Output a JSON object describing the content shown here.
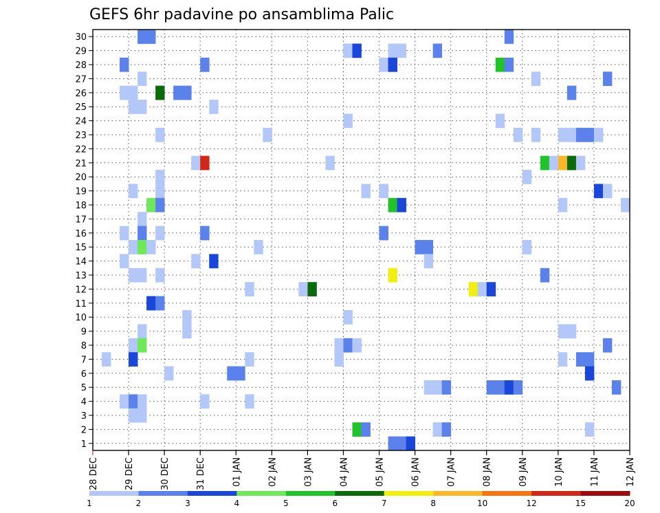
{
  "chart_data": {
    "type": "heatmap",
    "title": "GEFS 6hr padavine po ansamblima Palic",
    "x_tick_labels": [
      "28 DEC",
      "29 DEC",
      "30 DEC",
      "31 DEC",
      "01 JAN",
      "02 JAN",
      "03 JAN",
      "04 JAN",
      "05 JAN",
      "06 JAN",
      "07 JAN",
      "08 JAN",
      "09 JAN",
      "10 JAN",
      "11 JAN",
      "12 JAN"
    ],
    "y_tick_labels": [
      "1",
      "2",
      "3",
      "4",
      "5",
      "6",
      "7",
      "8",
      "9",
      "10",
      "11",
      "12",
      "13",
      "14",
      "15",
      "16",
      "17",
      "18",
      "19",
      "20",
      "21",
      "22",
      "23",
      "24",
      "25",
      "26",
      "27",
      "28",
      "29",
      "30"
    ],
    "xlim_days": [
      0,
      15
    ],
    "ylim_members": [
      0.5,
      30.5
    ],
    "grid": true,
    "cells_note": "each cell = [day offset from 28 DEC 00UTC (6h steps of 0.25), ensemble member, precipitation category level 0-10]",
    "cells": [
      [
        1.25,
        30,
        1
      ],
      [
        1.5,
        30,
        1
      ],
      [
        11.5,
        30,
        1
      ],
      [
        7.0,
        29,
        0
      ],
      [
        7.25,
        29,
        2
      ],
      [
        8.25,
        29,
        0
      ],
      [
        8.5,
        29,
        0
      ],
      [
        9.5,
        29,
        1
      ],
      [
        0.75,
        28,
        1
      ],
      [
        3.0,
        28,
        1
      ],
      [
        8.0,
        28,
        0
      ],
      [
        8.25,
        28,
        2
      ],
      [
        11.25,
        28,
        4
      ],
      [
        11.5,
        28,
        1
      ],
      [
        1.25,
        27,
        0
      ],
      [
        12.25,
        27,
        0
      ],
      [
        14.25,
        27,
        1
      ],
      [
        0.75,
        26,
        0
      ],
      [
        1.0,
        26,
        0
      ],
      [
        1.75,
        26,
        5
      ],
      [
        2.25,
        26,
        1
      ],
      [
        2.5,
        26,
        1
      ],
      [
        13.25,
        26,
        1
      ],
      [
        1.0,
        25,
        0
      ],
      [
        1.25,
        25,
        0
      ],
      [
        3.25,
        25,
        0
      ],
      [
        7.0,
        24,
        0
      ],
      [
        11.25,
        24,
        0
      ],
      [
        1.75,
        23,
        0
      ],
      [
        4.75,
        23,
        0
      ],
      [
        11.75,
        23,
        0
      ],
      [
        12.25,
        23,
        0
      ],
      [
        13.0,
        23,
        0
      ],
      [
        13.25,
        23,
        0
      ],
      [
        13.5,
        23,
        1
      ],
      [
        13.75,
        23,
        1
      ],
      [
        14.0,
        23,
        0
      ],
      [
        2.75,
        21,
        0
      ],
      [
        3.0,
        21,
        9
      ],
      [
        6.5,
        21,
        0
      ],
      [
        12.5,
        21,
        4
      ],
      [
        12.75,
        21,
        0
      ],
      [
        13.0,
        21,
        7
      ],
      [
        13.25,
        21,
        5
      ],
      [
        13.5,
        21,
        0
      ],
      [
        1.75,
        20,
        0
      ],
      [
        12.0,
        20,
        0
      ],
      [
        1.0,
        19,
        0
      ],
      [
        1.75,
        19,
        0
      ],
      [
        7.5,
        19,
        0
      ],
      [
        8.0,
        19,
        0
      ],
      [
        14.0,
        19,
        2
      ],
      [
        14.25,
        19,
        0
      ],
      [
        1.5,
        18,
        3
      ],
      [
        1.75,
        18,
        1
      ],
      [
        8.25,
        18,
        4
      ],
      [
        8.5,
        18,
        2
      ],
      [
        13.0,
        18,
        0
      ],
      [
        14.75,
        18,
        0
      ],
      [
        1.25,
        17,
        0
      ],
      [
        0.75,
        16,
        0
      ],
      [
        1.25,
        16,
        1
      ],
      [
        1.75,
        16,
        0
      ],
      [
        3.0,
        16,
        1
      ],
      [
        8.0,
        16,
        1
      ],
      [
        1.0,
        15,
        0
      ],
      [
        1.25,
        15,
        3
      ],
      [
        1.5,
        15,
        0
      ],
      [
        4.5,
        15,
        0
      ],
      [
        9.0,
        15,
        1
      ],
      [
        9.25,
        15,
        1
      ],
      [
        12.0,
        15,
        0
      ],
      [
        0.75,
        14,
        0
      ],
      [
        2.75,
        14,
        0
      ],
      [
        3.25,
        14,
        2
      ],
      [
        9.25,
        14,
        0
      ],
      [
        1.0,
        13,
        0
      ],
      [
        1.25,
        13,
        0
      ],
      [
        1.75,
        13,
        0
      ],
      [
        8.25,
        13,
        6
      ],
      [
        12.5,
        13,
        1
      ],
      [
        4.25,
        12,
        0
      ],
      [
        5.75,
        12,
        0
      ],
      [
        6.0,
        12,
        5
      ],
      [
        10.5,
        12,
        6
      ],
      [
        10.75,
        12,
        0
      ],
      [
        11.0,
        12,
        2
      ],
      [
        1.5,
        11,
        2
      ],
      [
        1.75,
        11,
        1
      ],
      [
        2.5,
        10,
        0
      ],
      [
        7.0,
        10,
        0
      ],
      [
        2.5,
        9,
        0
      ],
      [
        1.25,
        9,
        0
      ],
      [
        13.0,
        9,
        0
      ],
      [
        13.25,
        9,
        0
      ],
      [
        1.0,
        8,
        0
      ],
      [
        1.25,
        8,
        3
      ],
      [
        6.75,
        8,
        0
      ],
      [
        7.0,
        8,
        1
      ],
      [
        7.25,
        8,
        0
      ],
      [
        14.25,
        8,
        1
      ],
      [
        0.25,
        7,
        0
      ],
      [
        1.0,
        7,
        2
      ],
      [
        4.25,
        7,
        0
      ],
      [
        6.75,
        7,
        0
      ],
      [
        13.0,
        7,
        0
      ],
      [
        13.5,
        7,
        1
      ],
      [
        13.75,
        7,
        1
      ],
      [
        2.0,
        6,
        0
      ],
      [
        3.75,
        6,
        1
      ],
      [
        4.0,
        6,
        1
      ],
      [
        13.75,
        6,
        2
      ],
      [
        9.25,
        5,
        0
      ],
      [
        9.5,
        5,
        0
      ],
      [
        9.75,
        5,
        1
      ],
      [
        11.0,
        5,
        1
      ],
      [
        11.25,
        5,
        1
      ],
      [
        11.5,
        5,
        2
      ],
      [
        11.75,
        5,
        1
      ],
      [
        14.5,
        5,
        1
      ],
      [
        0.75,
        4,
        0
      ],
      [
        1.0,
        4,
        1
      ],
      [
        1.25,
        4,
        0
      ],
      [
        3.0,
        4,
        0
      ],
      [
        4.25,
        4,
        0
      ],
      [
        1.0,
        3,
        0
      ],
      [
        1.25,
        3,
        0
      ],
      [
        7.25,
        2,
        4
      ],
      [
        7.5,
        2,
        1
      ],
      [
        9.5,
        2,
        0
      ],
      [
        9.75,
        2,
        1
      ],
      [
        13.75,
        2,
        0
      ],
      [
        8.25,
        1,
        1
      ],
      [
        8.5,
        1,
        1
      ],
      [
        8.75,
        1,
        2
      ]
    ],
    "colorbar": {
      "labels": [
        "1",
        "2",
        "3",
        "4",
        "5",
        "6",
        "7",
        "8",
        "10",
        "12",
        "15",
        "20"
      ],
      "colors": [
        "#b3c8f8",
        "#5a82ea",
        "#1a47d9",
        "#6fe85a",
        "#22c22a",
        "#0b6b0b",
        "#f2ef10",
        "#fbb72a",
        "#f57610",
        "#d2281a",
        "#9c0c0c"
      ]
    }
  }
}
